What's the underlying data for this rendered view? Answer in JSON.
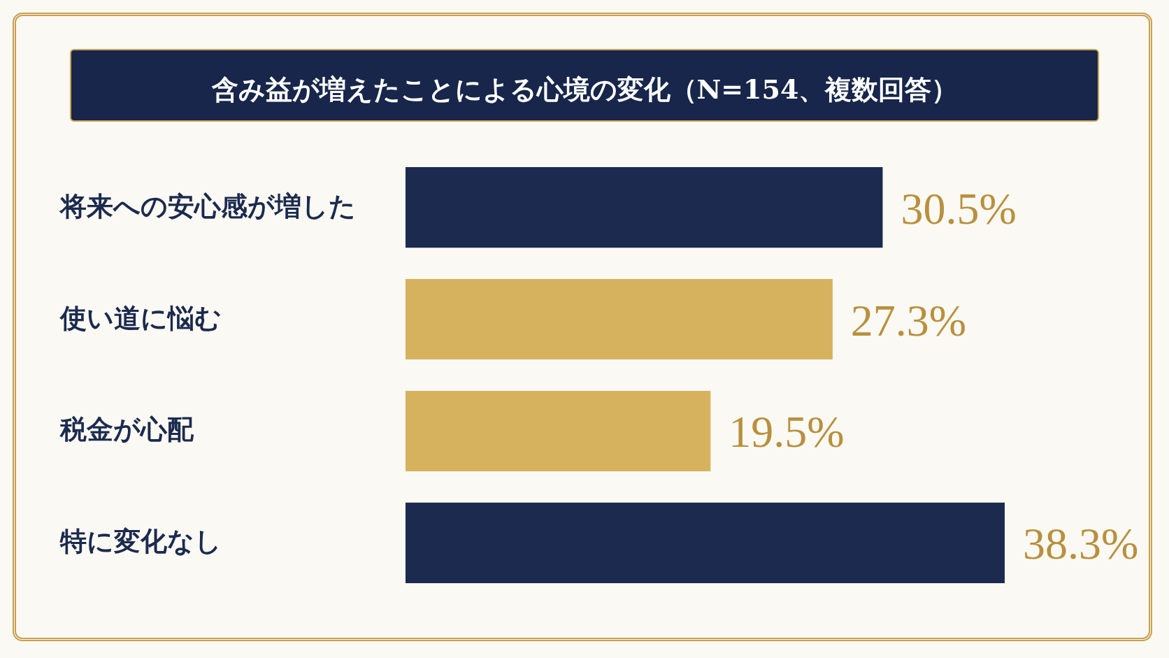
{
  "chart_data": {
    "type": "bar",
    "orientation": "horizontal",
    "title": "含み益が増えたことによる心境の変化（N=154、複数回答）",
    "categories": [
      "将来への安心感が増した",
      "使い道に悩む",
      "税金が心配",
      "特に変化なし"
    ],
    "values": [
      30.5,
      27.3,
      19.5,
      38.3
    ],
    "colors": [
      "#1b2a4e",
      "#d6b25f",
      "#d6b25f",
      "#1b2a4e"
    ],
    "value_labels": [
      "30.5%",
      "27.3%",
      "19.5%",
      "38.3%"
    ]
  }
}
